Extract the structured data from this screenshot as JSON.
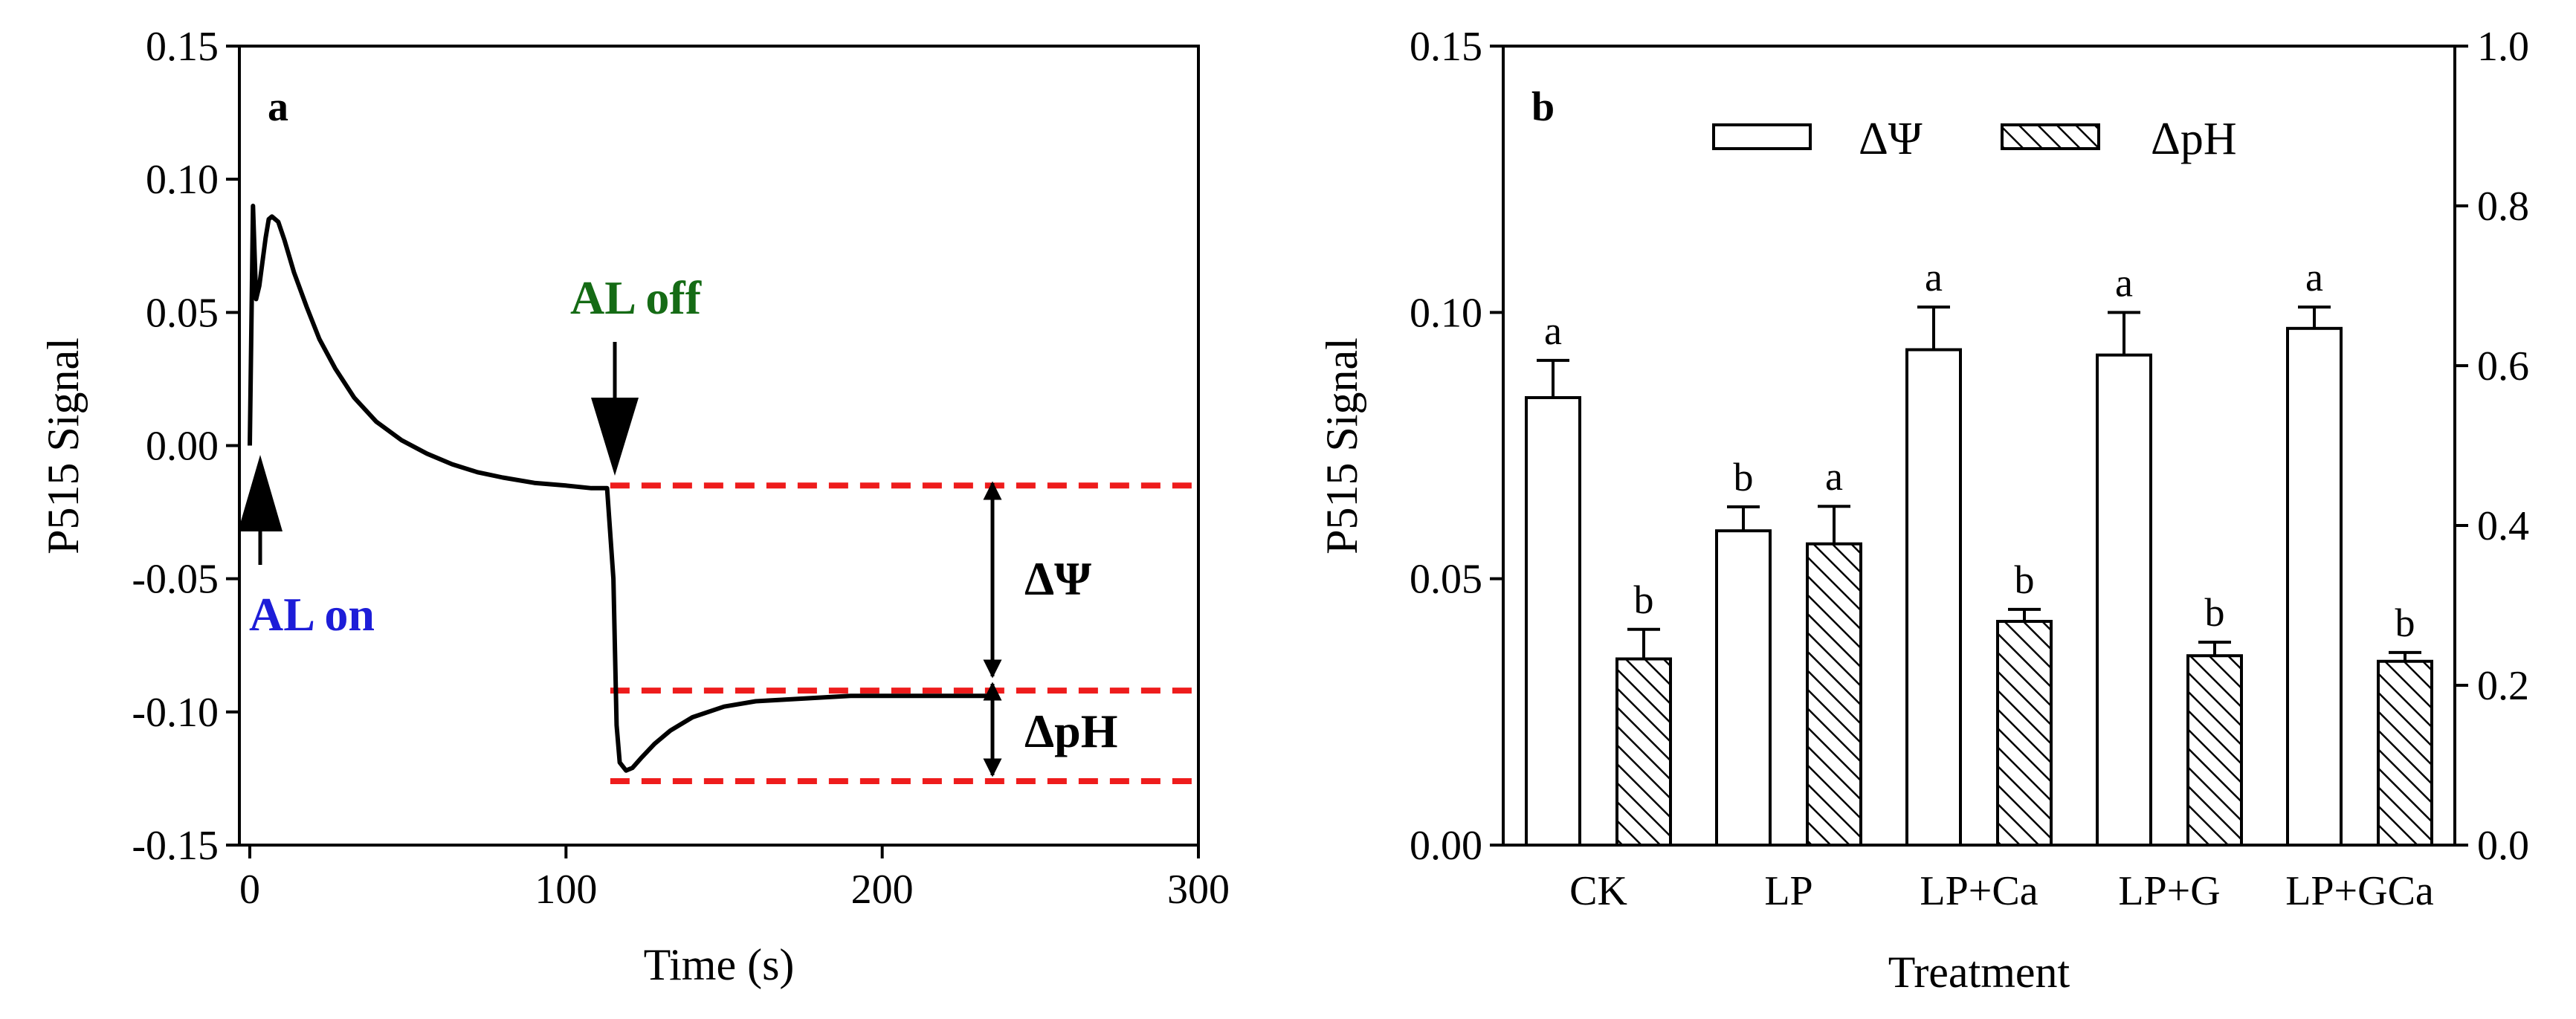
{
  "chart_data": [
    {
      "panel": "a",
      "type": "line",
      "xlabel": "Time (s)",
      "ylabel": "P515 Signal",
      "xlim": [
        0,
        300
      ],
      "ylim": [
        -0.15,
        0.15
      ],
      "xticks": [
        0,
        100,
        200,
        300
      ],
      "yticks": [
        -0.15,
        -0.1,
        -0.05,
        0.0,
        0.05,
        0.1,
        0.15
      ],
      "ytick_labels": [
        "-0.15",
        "-0.10",
        "-0.05",
        "0.00",
        "0.05",
        "0.10",
        "0.15"
      ],
      "series": [
        {
          "name": "P515 trace",
          "x": [
            0,
            1,
            2,
            3,
            5,
            6,
            7,
            9,
            11,
            14,
            18,
            22,
            27,
            33,
            40,
            48,
            56,
            64,
            72,
            80,
            90,
            100,
            108,
            113,
            115,
            116,
            117,
            119,
            121,
            124,
            128,
            133,
            140,
            150,
            160,
            175,
            190,
            205,
            220,
            235
          ],
          "y": [
            0.0,
            0.09,
            0.055,
            0.06,
            0.078,
            0.085,
            0.086,
            0.084,
            0.077,
            0.065,
            0.052,
            0.04,
            0.029,
            0.018,
            0.009,
            0.002,
            -0.003,
            -0.007,
            -0.01,
            -0.012,
            -0.014,
            -0.015,
            -0.016,
            -0.016,
            -0.05,
            -0.105,
            -0.119,
            -0.122,
            -0.121,
            -0.117,
            -0.112,
            -0.107,
            -0.102,
            -0.098,
            -0.096,
            -0.095,
            -0.094,
            -0.094,
            -0.094,
            -0.094
          ]
        }
      ],
      "reference_lines": [
        -0.015,
        -0.092,
        -0.126
      ],
      "annotations": {
        "panel_letter": "a",
        "al_on": "AL on",
        "al_off": "AL off",
        "delta_psi": "ΔΨ",
        "delta_ph": "ΔpH"
      },
      "colors": {
        "trace": "#000000",
        "reference": "#ee1c1c",
        "al_on": "#1d1dd8",
        "al_off": "#156b15"
      }
    },
    {
      "panel": "b",
      "type": "bar",
      "xlabel": "Treatment",
      "ylabel": "P515 Signal",
      "categories": [
        "CK",
        "LP",
        "LP+Ca",
        "LP+G",
        "LP+GCa"
      ],
      "ylim": [
        0,
        0.15
      ],
      "y2lim": [
        0,
        1.0
      ],
      "yticks": [
        0.0,
        0.05,
        0.1,
        0.15
      ],
      "ytick_labels": [
        "0.00",
        "0.05",
        "0.10",
        "0.15"
      ],
      "y2ticks": [
        0.0,
        0.2,
        0.4,
        0.6,
        0.8,
        1.0
      ],
      "y2tick_labels": [
        "0.0",
        "0.2",
        "0.4",
        "0.6",
        "0.8",
        "1.0"
      ],
      "series": [
        {
          "name": "ΔΨ",
          "axis": "left",
          "pattern": "open",
          "values": [
            0.084,
            0.059,
            0.093,
            0.092,
            0.097
          ],
          "errors": [
            0.007,
            0.0045,
            0.008,
            0.008,
            0.004
          ],
          "letters": [
            "a",
            "b",
            "a",
            "a",
            "a"
          ]
        },
        {
          "name": "ΔpH",
          "axis": "right",
          "pattern": "hatched",
          "values": [
            0.233,
            0.377,
            0.28,
            0.237,
            0.23
          ],
          "errors": [
            0.037,
            0.047,
            0.015,
            0.017,
            0.011
          ],
          "letters": [
            "b",
            "a",
            "b",
            "b",
            "b"
          ]
        }
      ],
      "annotations": {
        "panel_letter": "b"
      },
      "legend": {
        "position": "top-center",
        "entries": [
          "ΔΨ",
          "ΔpH"
        ]
      }
    }
  ]
}
